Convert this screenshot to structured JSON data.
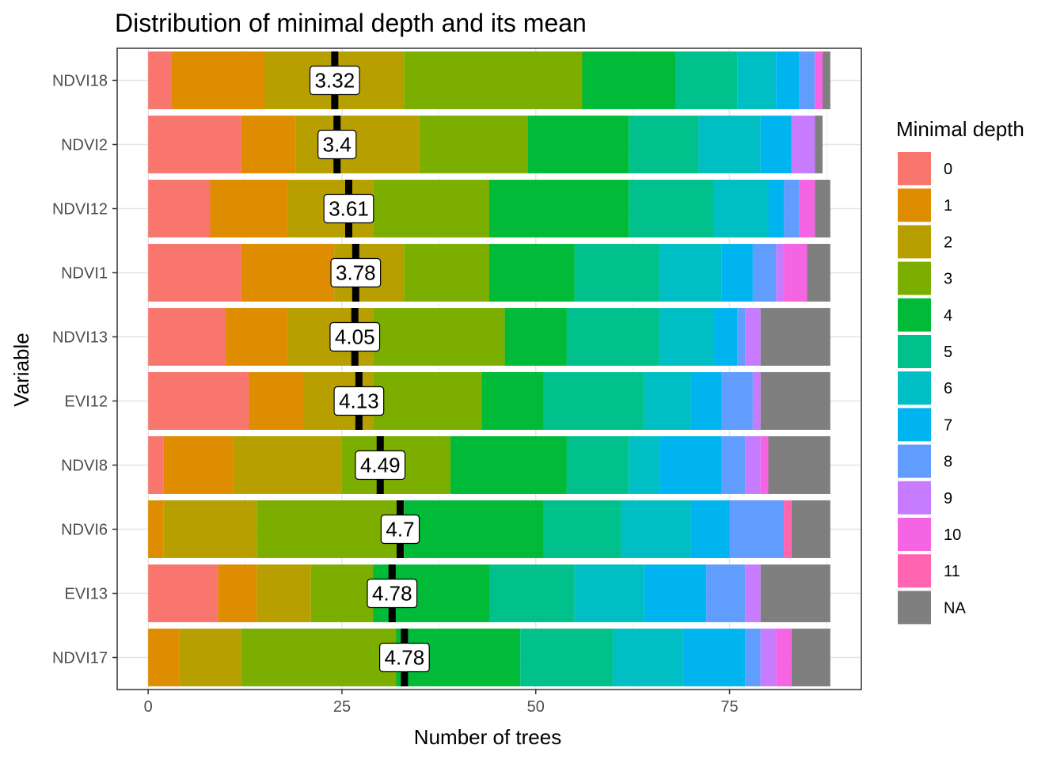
{
  "chart_data": {
    "type": "bar",
    "orientation": "horizontal",
    "stacked": true,
    "title": "Distribution of minimal depth and its mean",
    "xlabel": "Number of trees",
    "ylabel": "Variable",
    "xlim": [
      -4,
      92
    ],
    "xticks": [
      0,
      25,
      50,
      75
    ],
    "grid": true,
    "legend_position": "right",
    "legend_title": "Minimal depth",
    "depth_levels": [
      "0",
      "1",
      "2",
      "3",
      "4",
      "5",
      "6",
      "7",
      "8",
      "9",
      "10",
      "11",
      "NA"
    ],
    "depth_colors": [
      "#F8766D",
      "#DE8C00",
      "#B79F00",
      "#7CAE00",
      "#00BA38",
      "#00C08B",
      "#00BFC4",
      "#00B4F0",
      "#619CFF",
      "#C77CFF",
      "#F564E3",
      "#FF64B0",
      "#7F7F7F"
    ],
    "variables": [
      {
        "name": "NDVI18",
        "mean": 3.32,
        "mean_label": "3.32",
        "counts": [
          3,
          12,
          18,
          23,
          12,
          8,
          5,
          3,
          2,
          0,
          1,
          0,
          1
        ]
      },
      {
        "name": "NDVI2",
        "mean": 3.4,
        "mean_label": "3.4",
        "counts": [
          12,
          7,
          16,
          14,
          13,
          9,
          8,
          4,
          0,
          3,
          0,
          0,
          1
        ]
      },
      {
        "name": "NDVI12",
        "mean": 3.61,
        "mean_label": "3.61",
        "counts": [
          8,
          10,
          11,
          15,
          18,
          11,
          7,
          2,
          2,
          0,
          2,
          0,
          2
        ]
      },
      {
        "name": "NDVI1",
        "mean": 3.78,
        "mean_label": "3.78",
        "counts": [
          12,
          12,
          9,
          11,
          11,
          11,
          8,
          4,
          3,
          1,
          3,
          0,
          3
        ]
      },
      {
        "name": "NDVI13",
        "mean": 4.05,
        "mean_label": "4.05",
        "counts": [
          10,
          8,
          11,
          17,
          8,
          12,
          7,
          3,
          1,
          2,
          0,
          0,
          9
        ]
      },
      {
        "name": "EVI12",
        "mean": 4.13,
        "mean_label": "4.13",
        "counts": [
          13,
          7,
          9,
          14,
          8,
          13,
          6,
          4,
          4,
          1,
          0,
          0,
          9
        ]
      },
      {
        "name": "NDVI8",
        "mean": 4.49,
        "mean_label": "4.49",
        "counts": [
          2,
          9,
          14,
          14,
          15,
          8,
          4,
          8,
          3,
          2,
          1,
          0,
          8
        ]
      },
      {
        "name": "NDVI6",
        "mean": 4.7,
        "mean_label": "4.7",
        "counts": [
          0,
          2,
          12,
          19,
          18,
          10,
          9,
          5,
          7,
          0,
          0,
          1,
          5
        ]
      },
      {
        "name": "EVI13",
        "mean": 4.78,
        "mean_label": "4.78",
        "counts": [
          9,
          5,
          7,
          8,
          15,
          11,
          9,
          8,
          5,
          2,
          0,
          0,
          9
        ]
      },
      {
        "name": "NDVI17",
        "mean": 4.78,
        "mean_label": "4.78",
        "counts": [
          0,
          4,
          8,
          20,
          16,
          12,
          9,
          8,
          2,
          2,
          2,
          0,
          5
        ]
      }
    ]
  }
}
